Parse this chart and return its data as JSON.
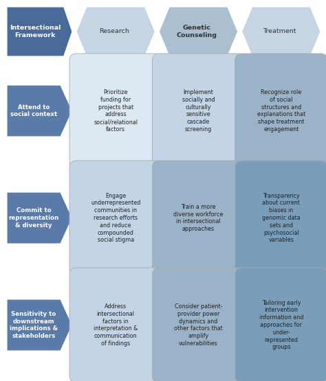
{
  "header_arrows": [
    {
      "label": "Intersectional\nFramework",
      "color": "#4a6b9a",
      "text_color": "#ffffff",
      "bold": true
    },
    {
      "label": "Research",
      "color": "#c5d5e4",
      "text_color": "#333333",
      "bold": false
    },
    {
      "label": "Genetic\nCounseling",
      "color": "#aabfcf",
      "text_color": "#333333",
      "bold": true
    },
    {
      "label": "Treatment",
      "color": "#c5d5e4",
      "text_color": "#333333",
      "bold": false
    }
  ],
  "row_labels": [
    {
      "label": "Attend to\nsocial context",
      "color": "#5a7aaa",
      "text_color": "#ffffff"
    },
    {
      "label": "Commit to\nrepresentation\n& diversity",
      "color": "#5a7aaa",
      "text_color": "#ffffff"
    },
    {
      "label": "Sensitivity to\ndownstream\nimplications &\nstakeholders",
      "color": "#5a7aaa",
      "text_color": "#ffffff"
    }
  ],
  "cells": [
    [
      {
        "text": "Prioritize\nfunding for\nprojects that\naddress\nsocial/relational\nfactors",
        "color": "#dce8f2"
      },
      {
        "text": "Implement\nsocially and\nculturally\nsensitive\ncascade\nscreening",
        "color": "#c2d4e5"
      },
      {
        "text": "Recognize role\nof social\nstructures and\nexplanations that\nshape treatment\nengagement",
        "color": "#9ab3c9"
      }
    ],
    [
      {
        "text": "Engage\nunderrepresented\ncommunities in\nresearch efforts\nand reduce\ncompounded\nsocial stigma",
        "color": "#c2d4e5"
      },
      {
        "text": "Train a more\ndiverse workforce\nin intersectional\napproaches",
        "color": "#9ab3c9"
      },
      {
        "text": "Transparency\nabout current\nbiases in\ngenomic data\nsets and\npsychosocial\nvariables",
        "color": "#7a9dba"
      }
    ],
    [
      {
        "text": "Address\nintersectional\nfactors in\ninterpretation &\ncommunication\nof findings",
        "color": "#c2d4e5"
      },
      {
        "text": "Consider patient-\nprovider power\ndynamics and\nother factors that\namplify\nvulnerabilities",
        "color": "#9ab3c9"
      },
      {
        "text": "Tailoring early\nintervention\ninformation and\napproaches for\nunder-\nrepresented\ngroups",
        "color": "#7a9dba"
      }
    ]
  ],
  "bg_color": "#ffffff",
  "figure_width": 4.74,
  "figure_height": 5.55,
  "dpi": 100
}
